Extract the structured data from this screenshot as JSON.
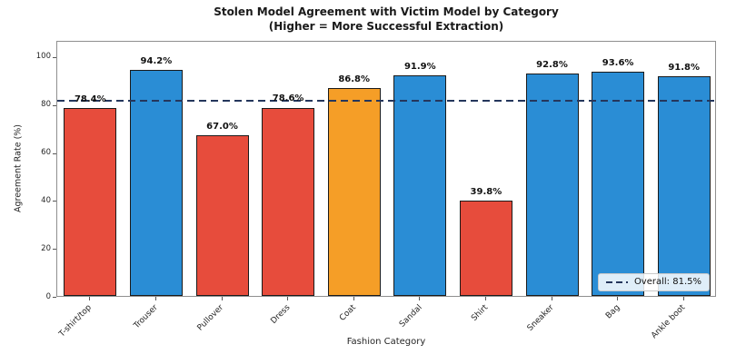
{
  "title": "Stolen Model Agreement with Victim Model by Category",
  "subtitle": "(Higher = More Successful Extraction)",
  "chart_data": {
    "type": "bar",
    "categories": [
      "T-shirt/top",
      "Trouser",
      "Pullover",
      "Dress",
      "Coat",
      "Sandal",
      "Shirt",
      "Sneaker",
      "Bag",
      "Ankle boot"
    ],
    "values": [
      78.4,
      94.2,
      67.0,
      78.6,
      86.8,
      91.9,
      39.8,
      92.8,
      93.6,
      91.8
    ],
    "value_labels": [
      "78.4%",
      "94.2%",
      "67.0%",
      "78.6%",
      "86.8%",
      "91.9%",
      "39.8%",
      "92.8%",
      "93.6%",
      "91.8%"
    ],
    "bar_colors": [
      "#e74c3c",
      "#2a8dd5",
      "#e74c3c",
      "#e74c3c",
      "#f59e27",
      "#2a8dd5",
      "#e74c3c",
      "#2a8dd5",
      "#2a8dd5",
      "#2a8dd5"
    ],
    "xlabel": "Fashion Category",
    "ylabel": "Agreement Rate (%)",
    "yticks": [
      0,
      20,
      40,
      60,
      80,
      100
    ],
    "ylim": [
      0,
      106.8
    ],
    "grid": false,
    "overall_line": {
      "value": 81.5,
      "color": "#24365c",
      "style": "dashed"
    },
    "legend": {
      "label": "Overall: 81.5%",
      "position": "lower right"
    }
  },
  "colors": {
    "bar_below_average": "#e74c3c",
    "bar_near_average": "#f59e27",
    "bar_above_average": "#2a8dd5",
    "bar_edge": "#1a1a1a",
    "overall_line": "#24365c"
  }
}
